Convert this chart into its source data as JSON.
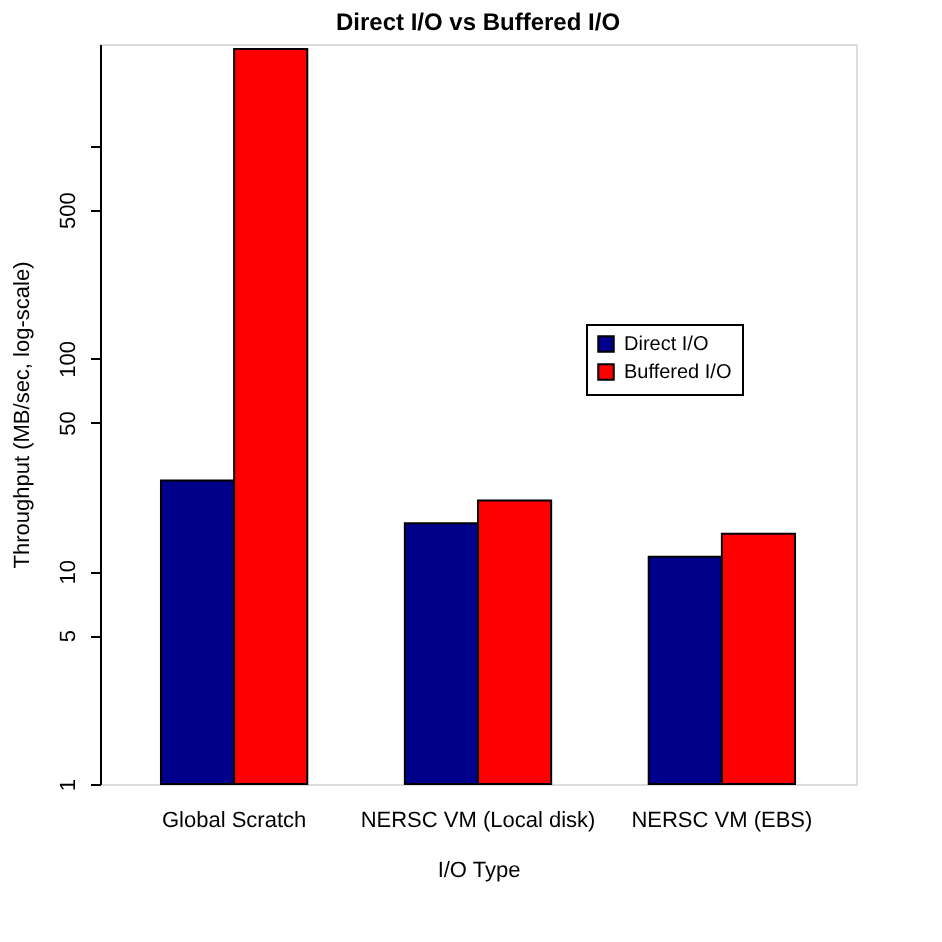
{
  "chart_data": {
    "type": "bar",
    "title": "Direct I/O vs Buffered I/O",
    "xlabel": "I/O Type",
    "ylabel": "Throughput (MB/sec, log-scale)",
    "categories": [
      "Global Scratch",
      "NERSC VM (Local disk)",
      "NERSC VM (EBS)"
    ],
    "series": [
      {
        "name": "Direct I/O",
        "color": "#00008b",
        "values": [
          26.7,
          16.8,
          11.7
        ]
      },
      {
        "name": "Buffered I/O",
        "color": "#ff0000",
        "values": [
          2840,
          21.5,
          15.0
        ]
      }
    ],
    "log": true,
    "ylim": [
      1,
      3000
    ],
    "yticks": [
      1,
      5,
      10,
      50,
      100,
      500,
      {
        "value": 1000,
        "label": null
      }
    ],
    "grid": false,
    "legend": "right"
  }
}
